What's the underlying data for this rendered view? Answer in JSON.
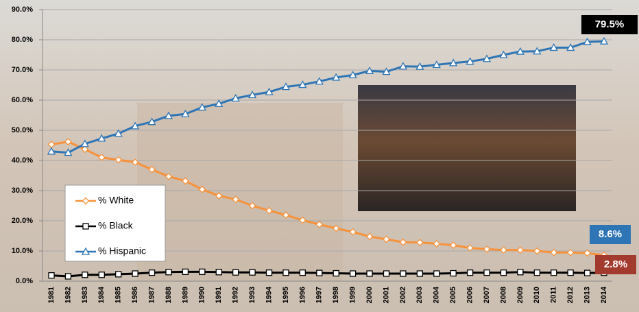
{
  "chart_data": {
    "type": "line",
    "categories": [
      "1981",
      "1982",
      "1983",
      "1984",
      "1985",
      "1986",
      "1987",
      "1988",
      "1989",
      "1990",
      "1991",
      "1992",
      "1993",
      "1994",
      "1995",
      "1996",
      "1997",
      "1998",
      "1999",
      "2000",
      "2001",
      "2002",
      "2003",
      "2004",
      "2005",
      "2006",
      "2007",
      "2008",
      "2009",
      "2010",
      "2011",
      "2012",
      "2013",
      "2014"
    ],
    "series": [
      {
        "name": "% White",
        "color": "#f7923a",
        "marker": "diamond",
        "end_label": "8.6%",
        "end_label_color": "#2e75b6",
        "values": [
          45.3,
          46.2,
          43.7,
          41.0,
          40.2,
          39.4,
          37.0,
          34.7,
          33.2,
          30.4,
          28.3,
          27.1,
          25.0,
          23.4,
          21.9,
          20.2,
          18.8,
          17.5,
          16.3,
          14.8,
          13.9,
          12.9,
          12.8,
          12.4,
          11.9,
          11.0,
          10.6,
          10.3,
          10.3,
          10.0,
          9.5,
          9.5,
          9.3,
          8.6
        ]
      },
      {
        "name": "% Black",
        "color": "#000000",
        "marker": "square",
        "end_label": "2.8%",
        "end_label_color": "#a33a2e",
        "values": [
          1.9,
          1.6,
          2.1,
          2.1,
          2.3,
          2.5,
          2.8,
          3.0,
          3.1,
          3.1,
          3.0,
          2.9,
          2.9,
          2.8,
          2.8,
          2.8,
          2.7,
          2.6,
          2.5,
          2.5,
          2.5,
          2.5,
          2.5,
          2.5,
          2.6,
          2.8,
          2.8,
          2.8,
          3.0,
          2.8,
          2.8,
          2.8,
          2.7,
          2.8
        ]
      },
      {
        "name": "% Hispanic",
        "color": "#2e75b6",
        "marker": "triangle",
        "end_label": "79.5%",
        "end_label_color": "#000000",
        "values": [
          43.0,
          42.6,
          45.5,
          47.3,
          48.9,
          51.4,
          52.8,
          54.8,
          55.4,
          57.6,
          58.8,
          60.6,
          61.7,
          62.7,
          64.4,
          65.1,
          66.2,
          67.5,
          68.3,
          69.7,
          69.4,
          71.2,
          71.1,
          71.7,
          72.3,
          72.8,
          73.7,
          75.0,
          76.1,
          76.2,
          77.4,
          77.4,
          79.3,
          79.5
        ]
      }
    ],
    "ylim": [
      0,
      90
    ],
    "yticks": [
      {
        "value": 0,
        "label": "0.0%"
      },
      {
        "value": 10,
        "label": "10.0%"
      },
      {
        "value": 20,
        "label": "20.0%"
      },
      {
        "value": 30,
        "label": "30.0%"
      },
      {
        "value": 40,
        "label": "40.0%"
      },
      {
        "value": 50,
        "label": "50.0%"
      },
      {
        "value": 60,
        "label": "60.0%"
      },
      {
        "value": 70,
        "label": "70.0%"
      },
      {
        "value": 80,
        "label": "80.0%"
      },
      {
        "value": 90,
        "label": "90.0%"
      }
    ],
    "grid": true
  }
}
